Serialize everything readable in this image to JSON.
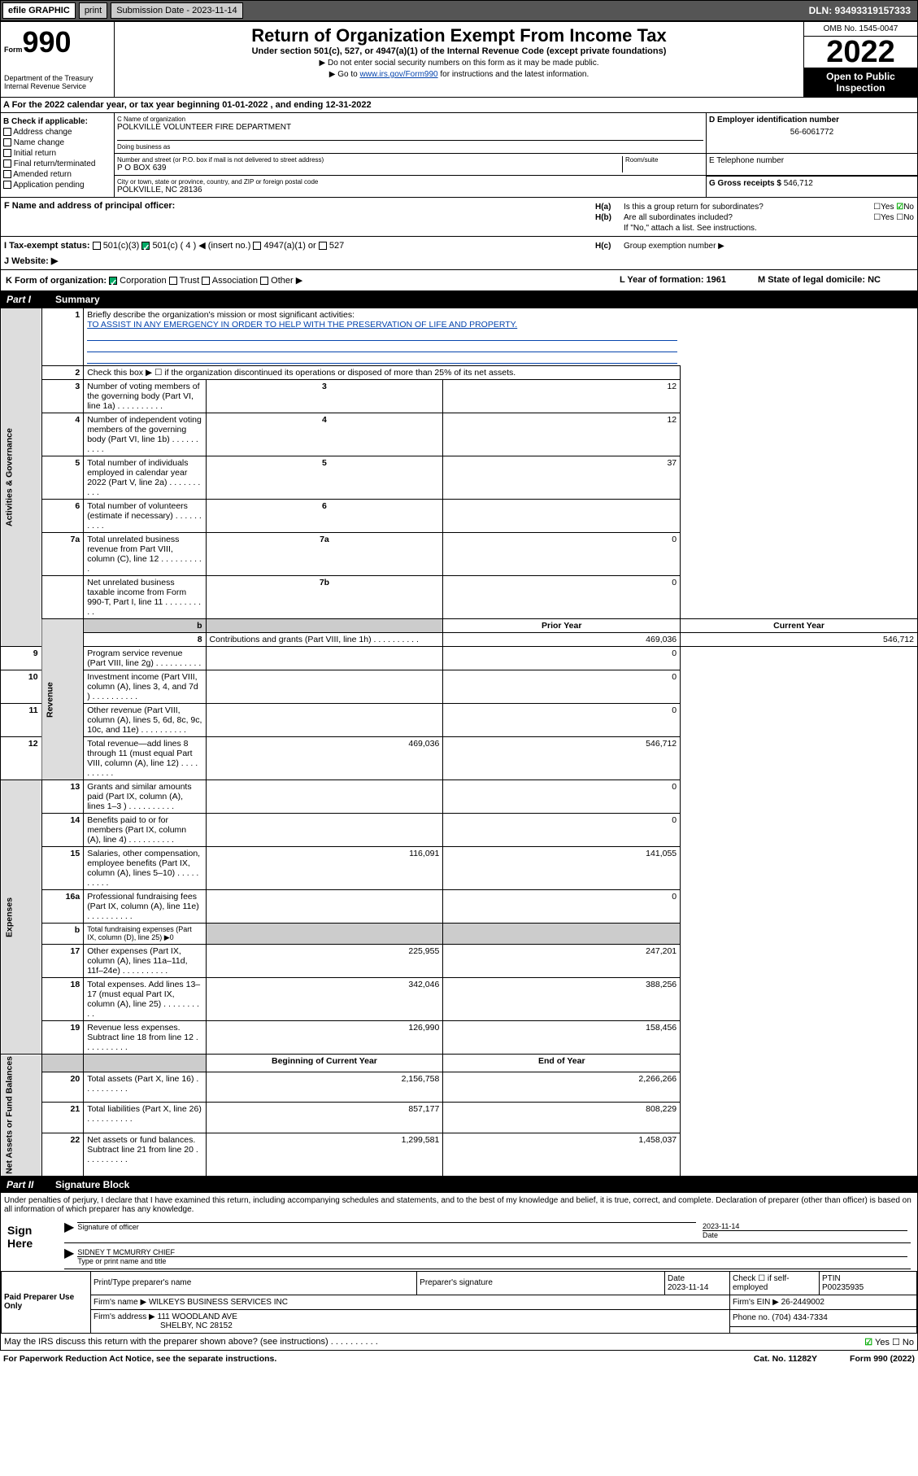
{
  "topbar": {
    "efile_left": "efile",
    "efile_right": "GRAPHIC",
    "print": "print",
    "submission_label": "Submission Date - ",
    "submission_date": "2023-11-14",
    "dln": "DLN: 93493319157333"
  },
  "header": {
    "form_label": "Form",
    "form_number": "990",
    "dept": "Department of the Treasury",
    "irs": "Internal Revenue Service",
    "title": "Return of Organization Exempt From Income Tax",
    "subtitle": "Under section 501(c), 527, or 4947(a)(1) of the Internal Revenue Code (except private foundations)",
    "note1": "▶ Do not enter social security numbers on this form as it may be made public.",
    "note2_pre": "▶ Go to ",
    "note2_link": "www.irs.gov/Form990",
    "note2_post": " for instructions and the latest information.",
    "omb": "OMB No. 1545-0047",
    "year": "2022",
    "open": "Open to Public Inspection"
  },
  "row_a": "A For the 2022 calendar year, or tax year beginning 01-01-2022   , and ending 12-31-2022",
  "section_b": {
    "label": "B Check if applicable:",
    "opts": [
      "Address change",
      "Name change",
      "Initial return",
      "Final return/terminated",
      "Amended return",
      "Application pending"
    ]
  },
  "section_c": {
    "name_label": "C Name of organization",
    "name": "POLKVILLE VOLUNTEER FIRE DEPARTMENT",
    "dba_label": "Doing business as",
    "dba": "",
    "addr_label": "Number and street (or P.O. box if mail is not delivered to street address)",
    "room_label": "Room/suite",
    "addr": "P O BOX 639",
    "city_label": "City or town, state or province, country, and ZIP or foreign postal code",
    "city": "POLKVILLE, NC  28136"
  },
  "section_d": {
    "ein_label": "D Employer identification number",
    "ein": "56-6061772",
    "tel_label": "E Telephone number",
    "tel": "",
    "gross_label": "G Gross receipts $ ",
    "gross": "546,712"
  },
  "row_f": "F  Name and address of principal officer:",
  "section_h": {
    "ha": "Is this a group return for subordinates?",
    "hb": "Are all subordinates included?",
    "hb_note": "If \"No,\" attach a list. See instructions.",
    "hc": "Group exemption number ▶"
  },
  "row_i": {
    "label": "I   Tax-exempt status:",
    "o1": "501(c)(3)",
    "o2": "501(c) ( 4 ) ◀ (insert no.)",
    "o3": "4947(a)(1) or",
    "o4": "527"
  },
  "row_j": "J   Website: ▶",
  "row_k": {
    "label": "K Form of organization:",
    "opts": [
      "Corporation",
      "Trust",
      "Association",
      "Other ▶"
    ],
    "l": "L Year of formation: 1961",
    "m": "M State of legal domicile: NC"
  },
  "parts": {
    "p1": "Part I",
    "p1_title": "Summary",
    "p2": "Part II",
    "p2_title": "Signature Block"
  },
  "summary": {
    "line1_label": "Briefly describe the organization's mission or most significant activities:",
    "line1_text": "TO ASSIST IN ANY EMERGENCY IN ORDER TO HELP WITH THE PRESERVATION OF LIFE AND PROPERTY.",
    "line2": "Check this box ▶ ☐  if the organization discontinued its operations or disposed of more than 25% of its net assets.",
    "lines_gov": [
      {
        "n": "3",
        "t": "Number of voting members of the governing body (Part VI, line 1a)",
        "box": "3",
        "v": "12"
      },
      {
        "n": "4",
        "t": "Number of independent voting members of the governing body (Part VI, line 1b)",
        "box": "4",
        "v": "12"
      },
      {
        "n": "5",
        "t": "Total number of individuals employed in calendar year 2022 (Part V, line 2a)",
        "box": "5",
        "v": "37"
      },
      {
        "n": "6",
        "t": "Total number of volunteers (estimate if necessary)",
        "box": "6",
        "v": ""
      },
      {
        "n": "7a",
        "t": "Total unrelated business revenue from Part VIII, column (C), line 12",
        "box": "7a",
        "v": "0"
      },
      {
        "n": "",
        "t": "Net unrelated business taxable income from Form 990-T, Part I, line 11",
        "box": "7b",
        "v": "0"
      }
    ],
    "hdr_b": "b",
    "hdr_prior": "Prior Year",
    "hdr_current": "Current Year",
    "lines_rev": [
      {
        "n": "8",
        "t": "Contributions and grants (Part VIII, line 1h)",
        "p": "469,036",
        "c": "546,712"
      },
      {
        "n": "9",
        "t": "Program service revenue (Part VIII, line 2g)",
        "p": "",
        "c": "0"
      },
      {
        "n": "10",
        "t": "Investment income (Part VIII, column (A), lines 3, 4, and 7d )",
        "p": "",
        "c": "0"
      },
      {
        "n": "11",
        "t": "Other revenue (Part VIII, column (A), lines 5, 6d, 8c, 9c, 10c, and 11e)",
        "p": "",
        "c": "0"
      },
      {
        "n": "12",
        "t": "Total revenue—add lines 8 through 11 (must equal Part VIII, column (A), line 12)",
        "p": "469,036",
        "c": "546,712"
      }
    ],
    "lines_exp": [
      {
        "n": "13",
        "t": "Grants and similar amounts paid (Part IX, column (A), lines 1–3 )",
        "p": "",
        "c": "0"
      },
      {
        "n": "14",
        "t": "Benefits paid to or for members (Part IX, column (A), line 4)",
        "p": "",
        "c": "0"
      },
      {
        "n": "15",
        "t": "Salaries, other compensation, employee benefits (Part IX, column (A), lines 5–10)",
        "p": "116,091",
        "c": "141,055"
      },
      {
        "n": "16a",
        "t": "Professional fundraising fees (Part IX, column (A), line 11e)",
        "p": "",
        "c": "0"
      },
      {
        "n": "b",
        "t": "Total fundraising expenses (Part IX, column (D), line 25) ▶0",
        "p": null,
        "c": null
      },
      {
        "n": "17",
        "t": "Other expenses (Part IX, column (A), lines 11a–11d, 11f–24e)",
        "p": "225,955",
        "c": "247,201"
      },
      {
        "n": "18",
        "t": "Total expenses. Add lines 13–17 (must equal Part IX, column (A), line 25)",
        "p": "342,046",
        "c": "388,256"
      },
      {
        "n": "19",
        "t": "Revenue less expenses. Subtract line 18 from line 12",
        "p": "126,990",
        "c": "158,456"
      }
    ],
    "hdr_beg": "Beginning of Current Year",
    "hdr_end": "End of Year",
    "lines_net": [
      {
        "n": "20",
        "t": "Total assets (Part X, line 16)",
        "p": "2,156,758",
        "c": "2,266,266"
      },
      {
        "n": "21",
        "t": "Total liabilities (Part X, line 26)",
        "p": "857,177",
        "c": "808,229"
      },
      {
        "n": "22",
        "t": "Net assets or fund balances. Subtract line 21 from line 20",
        "p": "1,299,581",
        "c": "1,458,037"
      }
    ],
    "vside": {
      "gov": "Activities & Governance",
      "rev": "Revenue",
      "exp": "Expenses",
      "net": "Net Assets or Fund Balances"
    }
  },
  "sig": {
    "penalty": "Under penalties of perjury, I declare that I have examined this return, including accompanying schedules and statements, and to the best of my knowledge and belief, it is true, correct, and complete. Declaration of preparer (other than officer) is based on all information of which preparer has any knowledge.",
    "sign_here": "Sign Here",
    "sig_officer": "Signature of officer",
    "date_label": "Date",
    "date": "2023-11-14",
    "officer_name": "SIDNEY T MCMURRY CHIEF",
    "type_name": "Type or print name and title",
    "paid_prep": "Paid Preparer Use Only",
    "prep_name_label": "Print/Type preparer's name",
    "prep_sig_label": "Preparer's signature",
    "prep_date": "2023-11-14",
    "check_label": "Check ☐ if self-employed",
    "ptin_label": "PTIN",
    "ptin": "P00235935",
    "firm_name_label": "Firm's name    ▶ ",
    "firm_name": "WILKEYS BUSINESS SERVICES INC",
    "firm_ein_label": "Firm's EIN ▶ ",
    "firm_ein": "26-2449002",
    "firm_addr_label": "Firm's address ▶ ",
    "firm_addr": "111 WOODLAND AVE",
    "firm_city": "SHELBY, NC  28152",
    "phone_label": "Phone no. ",
    "phone": "(704) 434-7334",
    "may_discuss": "May the IRS discuss this return with the preparer shown above? (see instructions)"
  },
  "footer": {
    "left": "For Paperwork Reduction Act Notice, see the separate instructions.",
    "mid": "Cat. No. 11282Y",
    "right": "Form 990 (2022)"
  }
}
